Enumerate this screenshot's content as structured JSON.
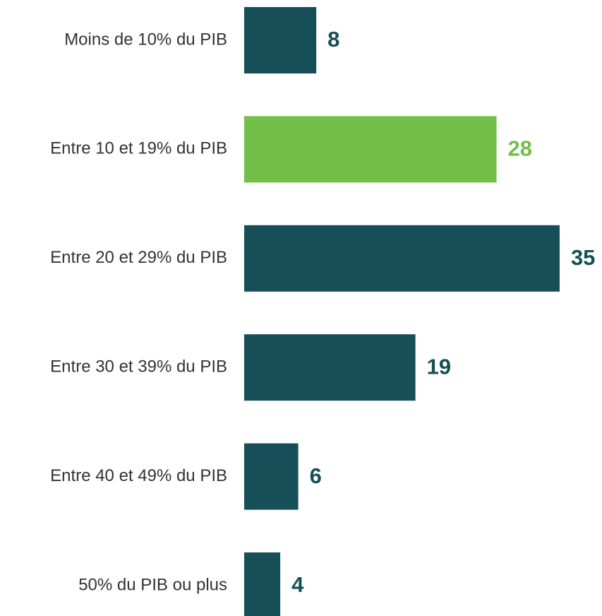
{
  "chart_data": {
    "type": "bar",
    "orientation": "horizontal",
    "categories": [
      "Moins de 10% du PIB",
      "Entre 10 et 19% du PIB",
      "Entre 20 et 29% du PIB",
      "Entre 30 et 39% du PIB",
      "Entre 40 et 49% du PIB",
      "50% du PIB ou plus"
    ],
    "values": [
      8,
      28,
      35,
      19,
      6,
      4
    ],
    "colors": [
      "#164f57",
      "#72bf4a",
      "#164f57",
      "#164f57",
      "#164f57",
      "#164f57"
    ]
  }
}
